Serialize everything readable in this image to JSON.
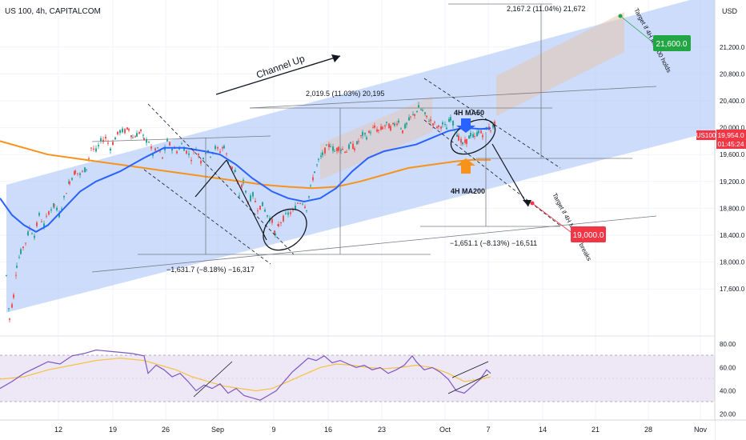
{
  "header": {
    "symbol_line": "US 100, 4h, CAPITALCOM"
  },
  "price_axis": {
    "currency": "USD",
    "ticks": [
      "21,200.0",
      "20,800.0",
      "20,400.0",
      "20,000.0",
      "19,600.0",
      "19,200.0",
      "18,800.0",
      "18,400.0",
      "18,000.0",
      "17,600.0"
    ],
    "last_symbol": "US100",
    "last_price": "19,954.0",
    "countdown": "01:45:24"
  },
  "rsi_axis": {
    "ticks": [
      "80.00",
      "60.00",
      "40.00",
      "20.00"
    ]
  },
  "time_axis": {
    "ticks": [
      "12",
      "19",
      "26",
      "Sep",
      "9",
      "16",
      "23",
      "Oct",
      "7",
      "14",
      "21",
      "28",
      "Nov"
    ]
  },
  "colors": {
    "up_candle": "#26a69a",
    "down_candle": "#ef5350",
    "ma50": "#2962ff",
    "ma200": "#f7931a",
    "channel_fill": "#bbd0f8",
    "target_up": "#22a543",
    "target_down": "#f23645",
    "rsi_line": "#7e57c2",
    "rsi_ma": "#f5c242",
    "rsi_band": "#ede7f6"
  },
  "annotations": {
    "channel_label": "Channel Up",
    "ma50_label": "4H MA50",
    "ma200_label": "4H MA200",
    "measure_drop_1": "−1,631.7 (−8.18%) −16,317",
    "measure_rise": "2,019.5 (11.03%) 20,195",
    "measure_drop_2": "−1,651.1 (−8.13%) −16,511",
    "measure_target": "2,167.2 (11.04%) 21,672",
    "target_up_note": "Target if 4H MA200 holds",
    "target_down_note": "Target if 4H MA200 breaks",
    "target_up_value": "21,600.0",
    "target_down_value": "19,000.0"
  },
  "chart_data": {
    "type": "candlestick",
    "title": "US 100, 4h, CAPITALCOM",
    "y_axis": {
      "unit": "USD",
      "range": [
        16900,
        21900
      ]
    },
    "rsi_range": [
      15,
      87
    ],
    "x_dates": [
      "Aug 12",
      "Aug 19",
      "Aug 26",
      "Sep 2",
      "Sep 9",
      "Sep 16",
      "Sep 23",
      "Sep 30",
      "Oct 7",
      "Oct 14",
      "Oct 21",
      "Oct 28",
      "Nov 4"
    ],
    "price_path": [
      [
        0,
        17800
      ],
      [
        4,
        17150
      ],
      [
        9,
        17500
      ],
      [
        13,
        17950
      ],
      [
        18,
        18150
      ],
      [
        24,
        18300
      ],
      [
        29,
        18500
      ],
      [
        35,
        18400
      ],
      [
        41,
        18700
      ],
      [
        47,
        18550
      ],
      [
        53,
        18750
      ],
      [
        60,
        18850
      ],
      [
        66,
        18700
      ],
      [
        72,
        18950
      ],
      [
        79,
        19200
      ],
      [
        86,
        19350
      ],
      [
        92,
        19300
      ],
      [
        100,
        19400
      ],
      [
        106,
        19700
      ],
      [
        112,
        19650
      ],
      [
        118,
        19800
      ],
      [
        124,
        19850
      ],
      [
        130,
        19700
      ],
      [
        136,
        19850
      ],
      [
        142,
        19950
      ],
      [
        148,
        19950
      ],
      [
        153,
        19980
      ],
      [
        158,
        19850
      ],
      [
        163,
        19900
      ],
      [
        168,
        19950
      ],
      [
        172,
        19820
      ],
      [
        178,
        19800
      ],
      [
        183,
        19600
      ],
      [
        189,
        19700
      ],
      [
        195,
        19550
      ],
      [
        201,
        19800
      ],
      [
        207,
        19700
      ],
      [
        213,
        19650
      ],
      [
        219,
        19750
      ],
      [
        225,
        19650
      ],
      [
        231,
        19550
      ],
      [
        237,
        19700
      ],
      [
        243,
        19500
      ],
      [
        249,
        19650
      ],
      [
        255,
        19600
      ],
      [
        261,
        19700
      ],
      [
        267,
        19650
      ],
      [
        272,
        19730
      ],
      [
        277,
        19500
      ],
      [
        282,
        19400
      ],
      [
        286,
        19350
      ],
      [
        291,
        19000
      ],
      [
        296,
        19200
      ],
      [
        302,
        18900
      ],
      [
        308,
        19000
      ],
      [
        314,
        18800
      ],
      [
        320,
        18850
      ],
      [
        326,
        18700
      ],
      [
        332,
        18600
      ],
      [
        336,
        18400
      ],
      [
        340,
        18550
      ],
      [
        346,
        18650
      ],
      [
        352,
        18720
      ],
      [
        358,
        18750
      ],
      [
        364,
        18880
      ],
      [
        370,
        18900
      ],
      [
        375,
        18800
      ],
      [
        380,
        19100
      ],
      [
        385,
        19350
      ],
      [
        390,
        19500
      ],
      [
        395,
        19600
      ],
      [
        400,
        19700
      ],
      [
        405,
        19750
      ],
      [
        410,
        19650
      ],
      [
        415,
        19700
      ],
      [
        420,
        19680
      ],
      [
        425,
        19650
      ],
      [
        430,
        19750
      ],
      [
        435,
        19700
      ],
      [
        440,
        19800
      ],
      [
        445,
        19900
      ],
      [
        450,
        19870
      ],
      [
        455,
        19950
      ],
      [
        460,
        20000
      ],
      [
        465,
        19950
      ],
      [
        470,
        20000
      ],
      [
        475,
        20050
      ],
      [
        480,
        20000
      ],
      [
        485,
        20050
      ],
      [
        490,
        20100
      ],
      [
        495,
        19950
      ],
      [
        500,
        20050
      ],
      [
        505,
        20150
      ],
      [
        510,
        20200
      ],
      [
        515,
        20300
      ],
      [
        520,
        20250
      ],
      [
        525,
        20150
      ],
      [
        530,
        20100
      ],
      [
        535,
        20050
      ],
      [
        540,
        20000
      ],
      [
        545,
        20050
      ],
      [
        550,
        20000
      ],
      [
        555,
        20150
      ],
      [
        560,
        20000
      ],
      [
        565,
        19850
      ],
      [
        570,
        19750
      ],
      [
        575,
        19800
      ],
      [
        580,
        19900
      ],
      [
        585,
        19850
      ],
      [
        590,
        19950
      ],
      [
        595,
        19900
      ],
      [
        600,
        20000
      ],
      [
        605,
        19980
      ],
      [
        610,
        20050
      ],
      [
        613,
        19950
      ]
    ],
    "ma50_path": [
      [
        0,
        18950
      ],
      [
        15,
        18700
      ],
      [
        30,
        18550
      ],
      [
        45,
        18450
      ],
      [
        60,
        18550
      ],
      [
        80,
        18800
      ],
      [
        100,
        19050
      ],
      [
        120,
        19200
      ],
      [
        150,
        19350
      ],
      [
        180,
        19550
      ],
      [
        205,
        19700
      ],
      [
        230,
        19700
      ],
      [
        255,
        19650
      ],
      [
        275,
        19600
      ],
      [
        295,
        19450
      ],
      [
        315,
        19250
      ],
      [
        340,
        19050
      ],
      [
        360,
        18950
      ],
      [
        380,
        18900
      ],
      [
        400,
        18950
      ],
      [
        420,
        19100
      ],
      [
        440,
        19350
      ],
      [
        460,
        19550
      ],
      [
        480,
        19650
      ],
      [
        500,
        19700
      ],
      [
        520,
        19750
      ],
      [
        540,
        19850
      ],
      [
        560,
        19950
      ],
      [
        580,
        20000
      ],
      [
        600,
        19980
      ],
      [
        613,
        19990
      ]
    ],
    "ma200_path": [
      [
        0,
        19800
      ],
      [
        30,
        19700
      ],
      [
        60,
        19600
      ],
      [
        90,
        19550
      ],
      [
        120,
        19500
      ],
      [
        150,
        19450
      ],
      [
        180,
        19400
      ],
      [
        210,
        19350
      ],
      [
        240,
        19300
      ],
      [
        270,
        19250
      ],
      [
        300,
        19200
      ],
      [
        330,
        19150
      ],
      [
        360,
        19120
      ],
      [
        390,
        19100
      ],
      [
        420,
        19120
      ],
      [
        450,
        19200
      ],
      [
        480,
        19300
      ],
      [
        510,
        19400
      ],
      [
        540,
        19450
      ],
      [
        570,
        19500
      ],
      [
        590,
        19520
      ],
      [
        613,
        19520
      ]
    ],
    "channel": {
      "lower_start": [
        8,
        17250
      ],
      "lower_end": [
        893,
        19950
      ],
      "upper_start": [
        8,
        19150
      ],
      "upper_end": [
        893,
        22000
      ]
    },
    "target_up": 21600,
    "target_down": 19000,
    "rsi_path": [
      [
        0,
        42
      ],
      [
        15,
        48
      ],
      [
        30,
        55
      ],
      [
        45,
        60
      ],
      [
        60,
        65
      ],
      [
        75,
        63
      ],
      [
        90,
        70
      ],
      [
        105,
        72
      ],
      [
        120,
        75
      ],
      [
        135,
        74
      ],
      [
        150,
        73
      ],
      [
        165,
        72
      ],
      [
        180,
        70
      ],
      [
        185,
        55
      ],
      [
        195,
        62
      ],
      [
        205,
        58
      ],
      [
        215,
        52
      ],
      [
        225,
        55
      ],
      [
        235,
        48
      ],
      [
        245,
        40
      ],
      [
        255,
        45
      ],
      [
        265,
        42
      ],
      [
        275,
        46
      ],
      [
        285,
        38
      ],
      [
        295,
        42
      ],
      [
        305,
        36
      ],
      [
        315,
        34
      ],
      [
        325,
        32
      ],
      [
        335,
        36
      ],
      [
        345,
        40
      ],
      [
        355,
        48
      ],
      [
        365,
        56
      ],
      [
        375,
        62
      ],
      [
        385,
        68
      ],
      [
        395,
        66
      ],
      [
        405,
        70
      ],
      [
        415,
        64
      ],
      [
        425,
        66
      ],
      [
        435,
        63
      ],
      [
        445,
        60
      ],
      [
        455,
        62
      ],
      [
        465,
        58
      ],
      [
        475,
        60
      ],
      [
        485,
        55
      ],
      [
        495,
        58
      ],
      [
        505,
        62
      ],
      [
        515,
        70
      ],
      [
        520,
        65
      ],
      [
        530,
        58
      ],
      [
        540,
        60
      ],
      [
        550,
        56
      ],
      [
        560,
        50
      ],
      [
        570,
        40
      ],
      [
        580,
        38
      ],
      [
        590,
        44
      ],
      [
        600,
        50
      ],
      [
        608,
        58
      ],
      [
        613,
        55
      ]
    ],
    "rsi_ma_path": [
      [
        0,
        50
      ],
      [
        30,
        52
      ],
      [
        60,
        58
      ],
      [
        90,
        62
      ],
      [
        120,
        66
      ],
      [
        150,
        68
      ],
      [
        180,
        66
      ],
      [
        200,
        62
      ],
      [
        220,
        58
      ],
      [
        240,
        52
      ],
      [
        260,
        48
      ],
      [
        280,
        44
      ],
      [
        300,
        42
      ],
      [
        320,
        40
      ],
      [
        340,
        42
      ],
      [
        360,
        48
      ],
      [
        380,
        54
      ],
      [
        400,
        60
      ],
      [
        420,
        63
      ],
      [
        440,
        62
      ],
      [
        460,
        60
      ],
      [
        480,
        59
      ],
      [
        500,
        60
      ],
      [
        520,
        62
      ],
      [
        540,
        60
      ],
      [
        560,
        55
      ],
      [
        580,
        48
      ],
      [
        600,
        50
      ],
      [
        613,
        52
      ]
    ]
  }
}
